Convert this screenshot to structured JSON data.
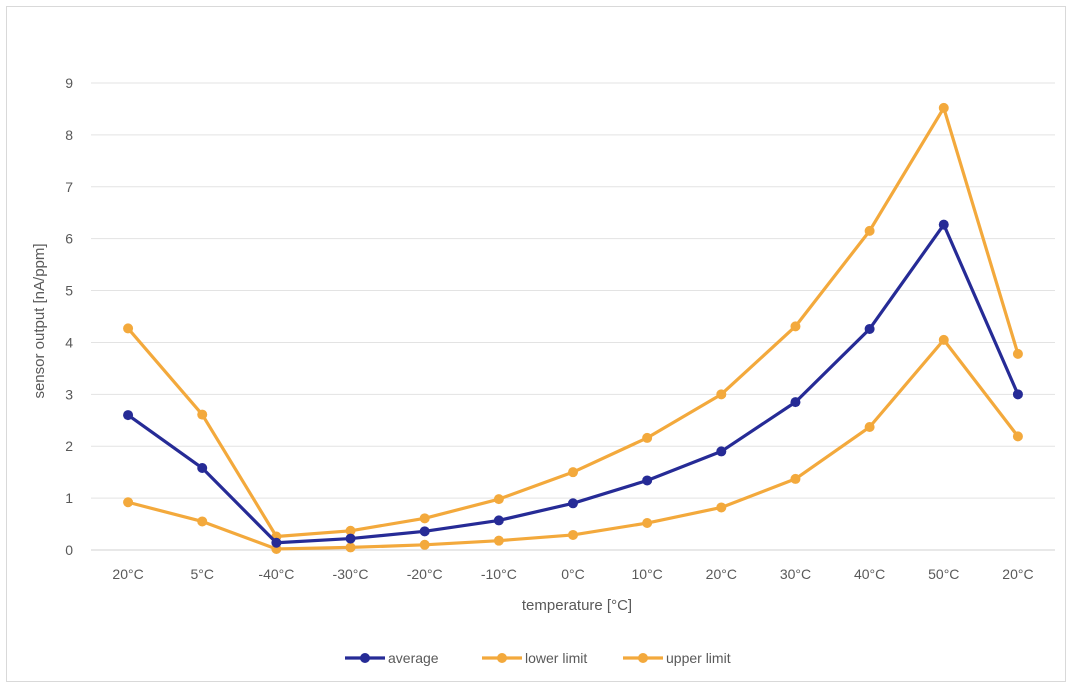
{
  "chart_data": {
    "type": "line",
    "categories": [
      "20°C",
      "5°C",
      "-40°C",
      "-30°C",
      "-20°C",
      "-10°C",
      "0°C",
      "10°C",
      "20°C",
      "30°C",
      "40°C",
      "50°C",
      "20°C"
    ],
    "series": [
      {
        "name": "average",
        "color": "#262b96",
        "values": [
          2.6,
          1.58,
          0.14,
          0.22,
          0.36,
          0.57,
          0.9,
          1.34,
          1.9,
          2.85,
          4.26,
          6.27,
          3.0
        ]
      },
      {
        "name": "lower limit",
        "color": "#f3a93c",
        "values": [
          4.27,
          2.61,
          0.26,
          0.37,
          0.61,
          0.98,
          1.5,
          2.16,
          3.0,
          4.31,
          6.15,
          8.52,
          3.78
        ]
      },
      {
        "name": "upper limit",
        "color": "#f3a93c",
        "values": [
          0.92,
          0.55,
          0.02,
          0.05,
          0.1,
          0.18,
          0.29,
          0.52,
          0.82,
          1.37,
          2.37,
          4.05,
          2.19
        ]
      }
    ],
    "xlabel": "temperature [°C]",
    "ylabel": "sensor output [nA/ppm]",
    "ylim": [
      0,
      9
    ],
    "yticks": [
      "0",
      "1",
      "2",
      "3",
      "4",
      "5",
      "6",
      "7",
      "8",
      "9"
    ],
    "grid": true,
    "legend_position": "bottom"
  }
}
